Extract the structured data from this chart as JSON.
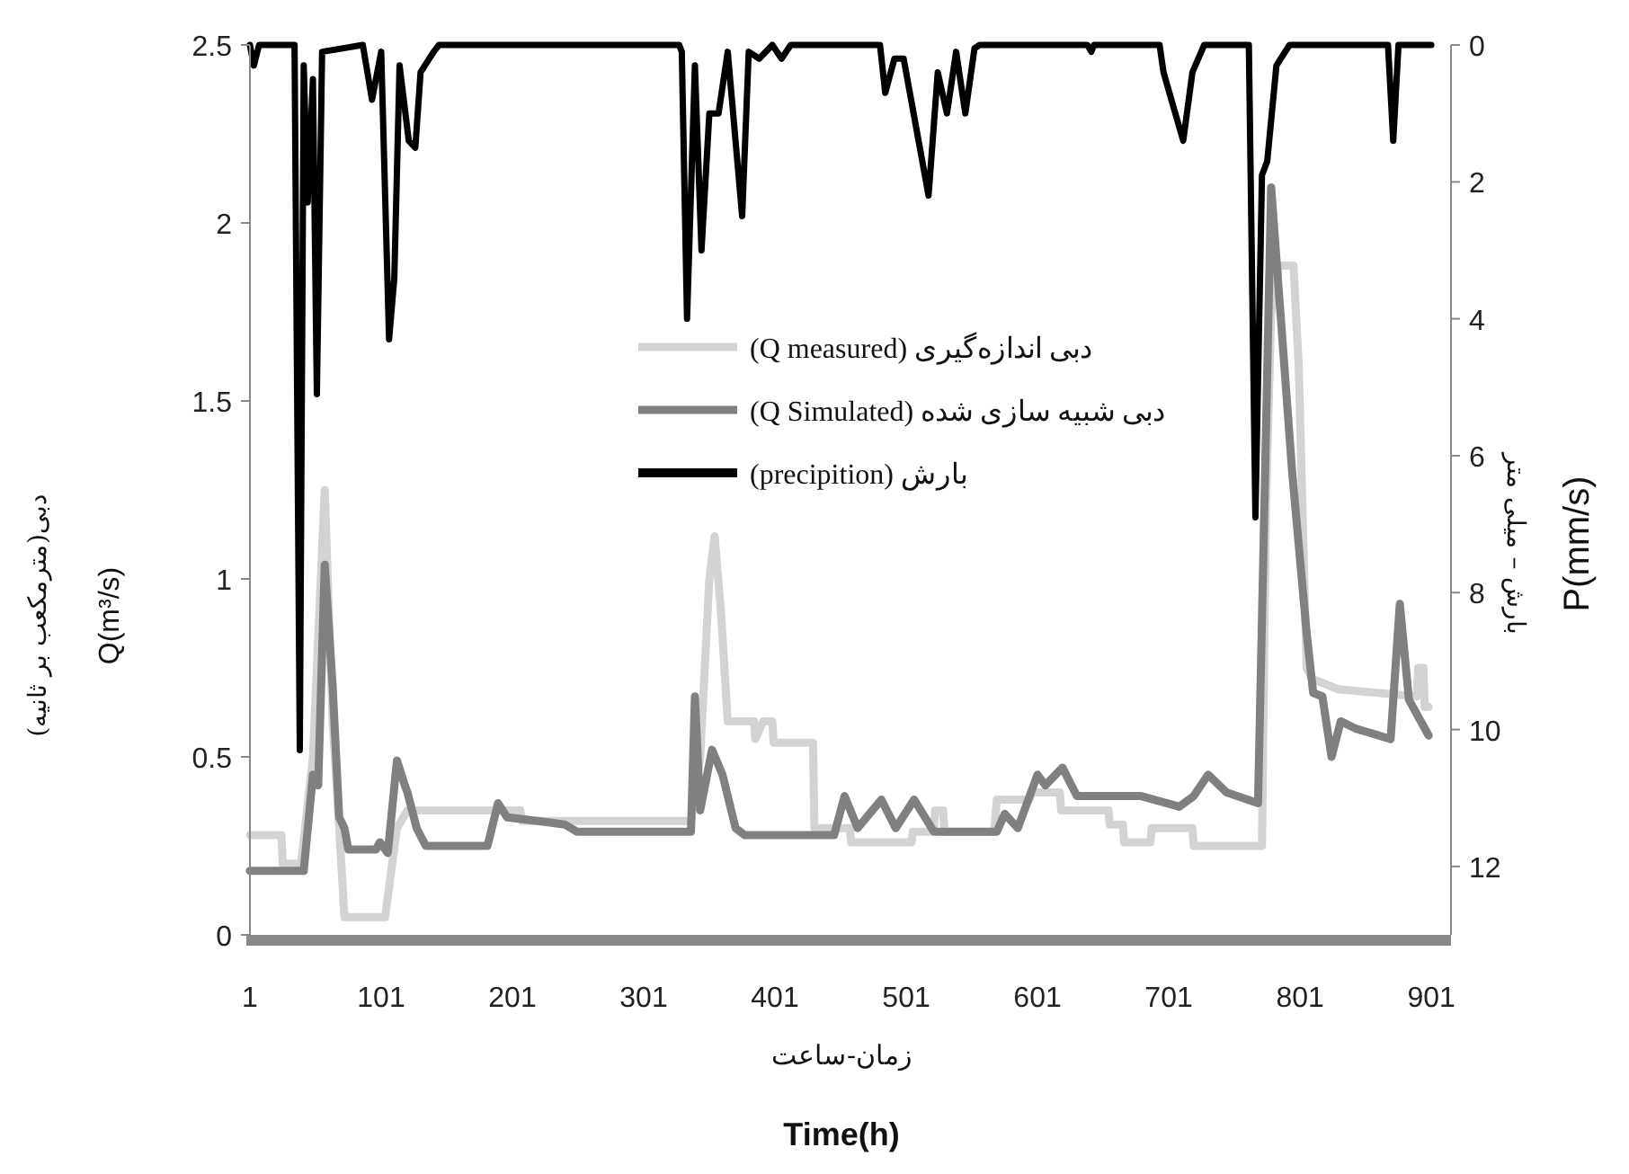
{
  "chart_data": {
    "type": "line",
    "xlabel": "زمان-ساعت\nTime(h)",
    "ylabel": "دبی(مترمکعب بر ثانیه)\nQ(m³/s)",
    "y2label": "بارش – میلی متر\nP(mm/s)",
    "xlim": [
      1,
      916
    ],
    "xticks": [
      1,
      101,
      201,
      301,
      401,
      501,
      601,
      701,
      801,
      901
    ],
    "ylim": [
      0,
      2.5
    ],
    "yticks": [
      0,
      0.5,
      1,
      1.5,
      2,
      2.5
    ],
    "y2lim": [
      13,
      0
    ],
    "y2ticks": [
      0,
      2,
      4,
      6,
      8,
      10,
      12
    ],
    "grid": false,
    "legend": "center",
    "series": [
      {
        "name": "دبی اندازه‌گیری (Q measured)",
        "color": "#d3d3d3",
        "x": [
          1,
          25,
          26,
          40,
          49,
          58,
          64,
          69,
          73,
          104,
          113,
          121,
          207,
          208,
          337,
          344,
          351,
          355,
          360,
          365,
          385,
          386,
          392,
          399,
          400,
          426,
          430,
          431,
          458,
          459,
          505,
          506,
          522,
          523,
          529,
          530,
          568,
          570,
          595,
          597,
          618,
          619,
          655,
          656,
          666,
          667,
          687,
          688,
          719,
          720,
          772,
          775,
          779,
          785,
          796,
          800,
          806,
          810,
          830,
          890,
          891,
          895,
          896,
          899
        ],
        "values": [
          0.28,
          0.28,
          0.2,
          0.2,
          0.5,
          1.25,
          0.6,
          0.3,
          0.05,
          0.05,
          0.3,
          0.35,
          0.35,
          0.32,
          0.32,
          0.5,
          1.0,
          1.12,
          0.9,
          0.6,
          0.6,
          0.55,
          0.6,
          0.6,
          0.54,
          0.54,
          0.54,
          0.3,
          0.3,
          0.26,
          0.26,
          0.29,
          0.29,
          0.35,
          0.35,
          0.29,
          0.29,
          0.38,
          0.38,
          0.4,
          0.4,
          0.35,
          0.35,
          0.31,
          0.31,
          0.26,
          0.26,
          0.3,
          0.3,
          0.25,
          0.25,
          1.2,
          1.75,
          1.88,
          1.88,
          1.6,
          0.75,
          0.72,
          0.69,
          0.67,
          0.75,
          0.75,
          0.64,
          0.64
        ]
      },
      {
        "name": "دبی شبیه سازی شده (Q Simulated)",
        "color": "#808080",
        "x": [
          1,
          42,
          49,
          53,
          58,
          64,
          69,
          73,
          76,
          97,
          100,
          106,
          113,
          119,
          121,
          128,
          135,
          182,
          190,
          197,
          220,
          241,
          250,
          337,
          340,
          344,
          353,
          361,
          371,
          378,
          446,
          454,
          464,
          482,
          493,
          507,
          522,
          570,
          576,
          586,
          601,
          607,
          620,
          631,
          680,
          709,
          720,
          731,
          745,
          769,
          779,
          795,
          806,
          811,
          818,
          825,
          832,
          843,
          870,
          877,
          884,
          899
        ],
        "values": [
          0.18,
          0.18,
          0.45,
          0.42,
          1.04,
          0.7,
          0.33,
          0.3,
          0.24,
          0.24,
          0.26,
          0.23,
          0.49,
          0.42,
          0.4,
          0.3,
          0.25,
          0.25,
          0.37,
          0.33,
          0.32,
          0.31,
          0.29,
          0.29,
          0.67,
          0.35,
          0.52,
          0.45,
          0.3,
          0.28,
          0.28,
          0.39,
          0.3,
          0.38,
          0.3,
          0.38,
          0.29,
          0.29,
          0.34,
          0.3,
          0.45,
          0.42,
          0.47,
          0.39,
          0.39,
          0.36,
          0.39,
          0.45,
          0.4,
          0.37,
          2.1,
          1.3,
          0.85,
          0.68,
          0.67,
          0.5,
          0.6,
          0.58,
          0.55,
          0.93,
          0.66,
          0.56
        ]
      },
      {
        "name": "بارش (precipition)",
        "color": "#000000",
        "axis": "y2",
        "x": [
          1,
          4,
          8,
          35,
          39,
          42,
          45,
          49,
          52,
          56,
          87,
          94,
          101,
          107,
          111,
          115,
          122,
          127,
          131,
          141,
          145,
          328,
          330,
          334,
          340,
          345,
          351,
          358,
          365,
          376,
          381,
          389,
          399,
          406,
          413,
          481,
          485,
          492,
          499,
          518,
          525,
          532,
          539,
          546,
          553,
          557,
          639,
          642,
          644,
          694,
          697,
          712,
          719,
          728,
          762,
          767,
          772,
          776,
          783,
          793,
          868,
          872,
          876,
          901
        ],
        "values": [
          0,
          0.3,
          0,
          0,
          10.3,
          0.3,
          2.3,
          0.5,
          5.1,
          0.1,
          0,
          0.8,
          0.1,
          4.3,
          3.4,
          0.3,
          1.4,
          1.5,
          0.4,
          0.1,
          0,
          0,
          0.1,
          4.0,
          0.3,
          3.0,
          1.0,
          1.0,
          0.1,
          2.5,
          0.1,
          0.2,
          0,
          0.2,
          0,
          0,
          0.7,
          0.2,
          0.2,
          2.2,
          0.4,
          1.0,
          0.1,
          1.0,
          0.05,
          0,
          0,
          0.1,
          0,
          0,
          0.4,
          1.4,
          0.4,
          0,
          0,
          6.9,
          1.9,
          1.7,
          0.3,
          0,
          0,
          1.4,
          0,
          0
        ]
      }
    ]
  }
}
